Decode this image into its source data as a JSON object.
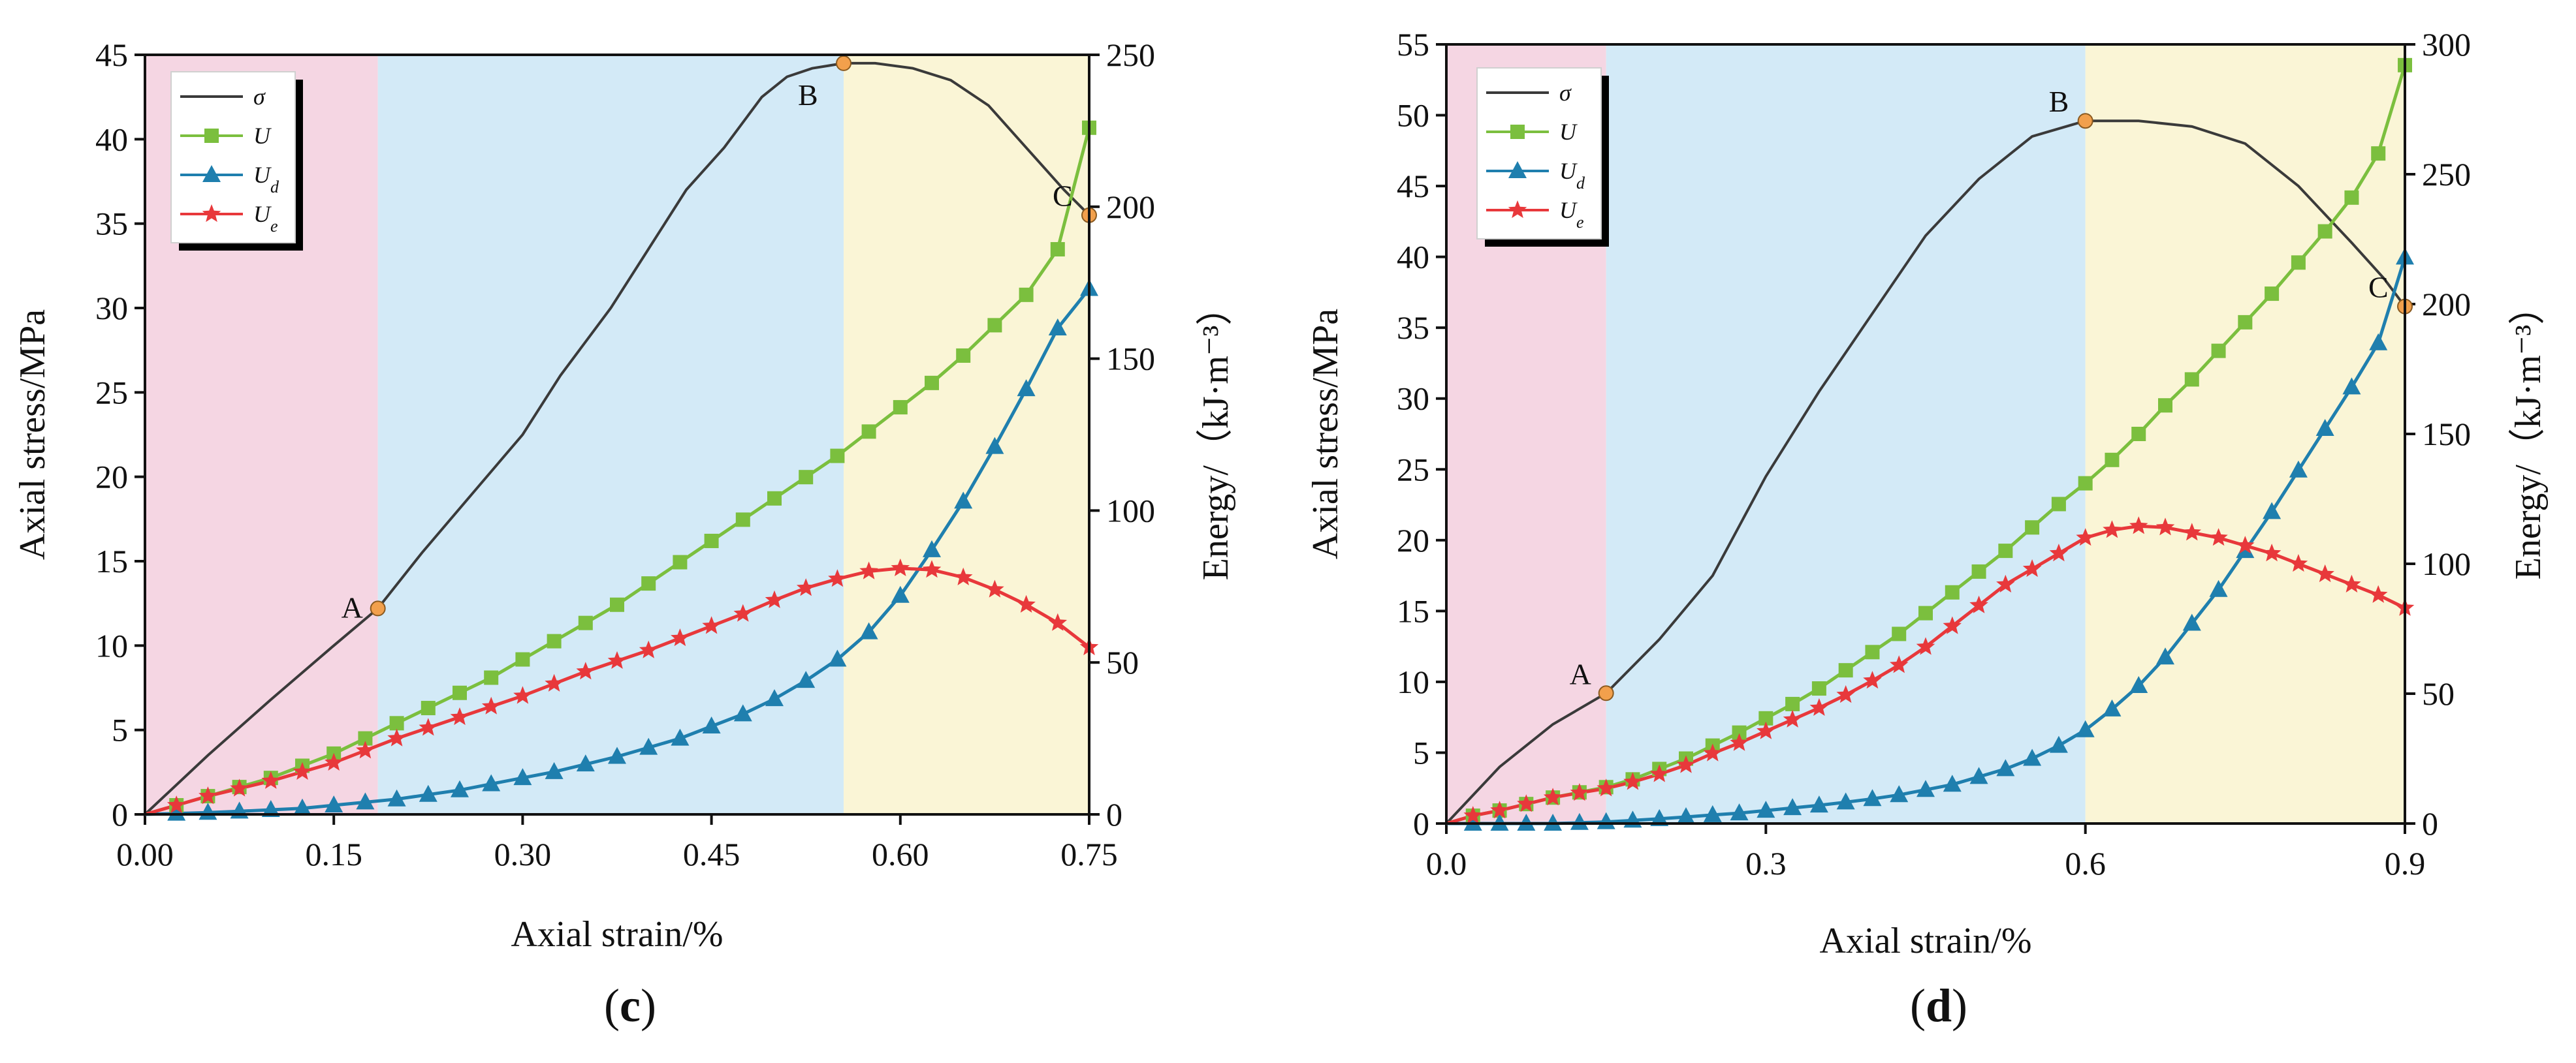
{
  "chart_data": [
    {
      "type": "line",
      "panel_label": "(c)",
      "caption_parts": {
        "open": "(",
        "letter": "c",
        "close": ")"
      },
      "xlabel": "Axial strain/%",
      "ylabel_left": "Axial stress/MPa",
      "ylabel_right": "Energy/（kJ·m⁻³）",
      "xlim": [
        0,
        0.75
      ],
      "ylim_left": [
        0,
        45
      ],
      "ylim_right": [
        0,
        250
      ],
      "xticks": [
        "0.00",
        "0.15",
        "0.30",
        "0.45",
        "0.60",
        "0.75"
      ],
      "xtick_values": [
        0,
        0.15,
        0.3,
        0.45,
        0.6,
        0.75
      ],
      "yticks_left": [
        "0",
        "5",
        "10",
        "15",
        "20",
        "25",
        "30",
        "35",
        "40",
        "45"
      ],
      "ytick_values_left": [
        0,
        5,
        10,
        15,
        20,
        25,
        30,
        35,
        40,
        45
      ],
      "yticks_right": [
        "0",
        "50",
        "100",
        "150",
        "200",
        "250"
      ],
      "ytick_values_right": [
        0,
        50,
        100,
        150,
        200,
        250
      ],
      "regions": [
        {
          "from": 0,
          "to": 0.185,
          "color": "#f5d6e3"
        },
        {
          "from": 0.185,
          "to": 0.555,
          "color": "#d3eaf7"
        },
        {
          "from": 0.555,
          "to": 0.75,
          "color": "#faf5d6"
        }
      ],
      "points": [
        {
          "label": "A",
          "x": 0.185,
          "y": 12.2,
          "label_pos": "left"
        },
        {
          "label": "B",
          "x": 0.555,
          "y": 44.5,
          "label_pos": "below-left"
        },
        {
          "label": "C",
          "x": 0.75,
          "y": 35.5,
          "label_pos": "above-left"
        }
      ],
      "legend": [
        "σ",
        "U",
        "U_d",
        "U_e"
      ],
      "series": [
        {
          "name": "σ",
          "axis": "left",
          "color": "#3a3a3a",
          "marker": "none",
          "x": [
            0,
            0.05,
            0.1,
            0.15,
            0.185,
            0.22,
            0.26,
            0.3,
            0.33,
            0.37,
            0.4,
            0.43,
            0.46,
            0.49,
            0.51,
            0.53,
            0.555,
            0.58,
            0.61,
            0.64,
            0.67,
            0.7,
            0.73,
            0.75
          ],
          "y": [
            0,
            3.5,
            6.8,
            10.0,
            12.2,
            15.5,
            19.0,
            22.5,
            26.0,
            30.0,
            33.5,
            37.0,
            39.5,
            42.5,
            43.7,
            44.2,
            44.5,
            44.5,
            44.2,
            43.5,
            42.0,
            39.5,
            37.0,
            35.5
          ]
        },
        {
          "name": "U",
          "axis": "right",
          "color": "#7bbf3e",
          "marker": "square",
          "x": [
            0,
            0.025,
            0.05,
            0.075,
            0.1,
            0.125,
            0.15,
            0.175,
            0.2,
            0.225,
            0.25,
            0.275,
            0.3,
            0.325,
            0.35,
            0.375,
            0.4,
            0.425,
            0.45,
            0.475,
            0.5,
            0.525,
            0.55,
            0.575,
            0.6,
            0.625,
            0.65,
            0.675,
            0.7,
            0.725,
            0.75
          ],
          "y": [
            0,
            3,
            6,
            9,
            12,
            16,
            20,
            25,
            30,
            35,
            40,
            45,
            51,
            57,
            63,
            69,
            76,
            83,
            90,
            97,
            104,
            111,
            118,
            126,
            134,
            142,
            151,
            161,
            171,
            186,
            226
          ]
        },
        {
          "name": "U_d",
          "axis": "right",
          "color": "#1f7fae",
          "marker": "triangle",
          "x": [
            0,
            0.025,
            0.05,
            0.075,
            0.1,
            0.125,
            0.15,
            0.175,
            0.2,
            0.225,
            0.25,
            0.275,
            0.3,
            0.325,
            0.35,
            0.375,
            0.4,
            0.425,
            0.45,
            0.475,
            0.5,
            0.525,
            0.55,
            0.575,
            0.6,
            0.625,
            0.65,
            0.675,
            0.7,
            0.725,
            0.75
          ],
          "y": [
            0,
            0.3,
            0.6,
            1.0,
            1.5,
            2.0,
            3.0,
            4.0,
            5.0,
            6.5,
            8.0,
            10,
            12,
            14,
            16.5,
            19,
            22,
            25,
            29,
            33,
            38,
            44,
            51,
            60,
            72,
            87,
            103,
            121,
            140,
            160,
            173
          ]
        },
        {
          "name": "U_e",
          "axis": "right",
          "color": "#e8383b",
          "marker": "star",
          "x": [
            0,
            0.025,
            0.05,
            0.075,
            0.1,
            0.125,
            0.15,
            0.175,
            0.2,
            0.225,
            0.25,
            0.275,
            0.3,
            0.325,
            0.35,
            0.375,
            0.4,
            0.425,
            0.45,
            0.475,
            0.5,
            0.525,
            0.55,
            0.575,
            0.6,
            0.625,
            0.65,
            0.675,
            0.7,
            0.725,
            0.75
          ],
          "y": [
            0,
            3,
            6,
            8.5,
            11,
            14,
            17,
            21,
            25,
            28.5,
            32,
            35.5,
            39,
            43,
            47,
            50.5,
            54,
            58,
            62,
            66,
            70.5,
            74.5,
            77.5,
            80,
            81,
            80.5,
            78,
            74,
            69,
            63,
            55
          ]
        }
      ]
    },
    {
      "type": "line",
      "panel_label": "(d)",
      "caption_parts": {
        "open": "(",
        "letter": "d",
        "close": ")"
      },
      "xlabel": "Axial strain/%",
      "ylabel_left": "Axial stress/MPa",
      "ylabel_right": "Energy/（kJ·m⁻³）",
      "xlim": [
        0,
        0.9
      ],
      "ylim_left": [
        0,
        55
      ],
      "ylim_right": [
        0,
        300
      ],
      "xticks": [
        "0.0",
        "0.3",
        "0.6",
        "0.9"
      ],
      "xtick_values": [
        0,
        0.3,
        0.6,
        0.9
      ],
      "yticks_left": [
        "0",
        "5",
        "10",
        "15",
        "20",
        "25",
        "30",
        "35",
        "40",
        "45",
        "50",
        "55"
      ],
      "ytick_values_left": [
        0,
        5,
        10,
        15,
        20,
        25,
        30,
        35,
        40,
        45,
        50,
        55
      ],
      "yticks_right": [
        "0",
        "50",
        "100",
        "150",
        "200",
        "250",
        "300"
      ],
      "ytick_values_right": [
        0,
        50,
        100,
        150,
        200,
        250,
        300
      ],
      "regions": [
        {
          "from": 0,
          "to": 0.15,
          "color": "#f5d6e3"
        },
        {
          "from": 0.15,
          "to": 0.6,
          "color": "#d3eaf7"
        },
        {
          "from": 0.6,
          "to": 0.9,
          "color": "#faf5d6"
        }
      ],
      "points": [
        {
          "label": "A",
          "x": 0.15,
          "y": 9.2,
          "label_pos": "above-left"
        },
        {
          "label": "B",
          "x": 0.6,
          "y": 49.6,
          "label_pos": "above-left"
        },
        {
          "label": "C",
          "x": 0.9,
          "y": 36.5,
          "label_pos": "above-left"
        }
      ],
      "legend": [
        "σ",
        "U",
        "U_d",
        "U_e"
      ],
      "series": [
        {
          "name": "σ",
          "axis": "left",
          "color": "#3a3a3a",
          "marker": "none",
          "x": [
            0,
            0.05,
            0.1,
            0.15,
            0.2,
            0.25,
            0.3,
            0.35,
            0.4,
            0.45,
            0.5,
            0.55,
            0.6,
            0.65,
            0.7,
            0.75,
            0.8,
            0.85,
            0.88,
            0.9
          ],
          "y": [
            0,
            4.0,
            7.0,
            9.2,
            13.0,
            17.5,
            24.5,
            30.5,
            36.0,
            41.5,
            45.5,
            48.5,
            49.6,
            49.6,
            49.2,
            48.0,
            45.0,
            41.0,
            38.5,
            36.5
          ]
        },
        {
          "name": "U",
          "axis": "right",
          "color": "#7bbf3e",
          "marker": "square",
          "x": [
            0,
            0.025,
            0.05,
            0.075,
            0.1,
            0.125,
            0.15,
            0.175,
            0.2,
            0.225,
            0.25,
            0.275,
            0.3,
            0.325,
            0.35,
            0.375,
            0.4,
            0.425,
            0.45,
            0.475,
            0.5,
            0.525,
            0.55,
            0.575,
            0.6,
            0.625,
            0.65,
            0.675,
            0.7,
            0.725,
            0.75,
            0.775,
            0.8,
            0.825,
            0.85,
            0.875,
            0.9
          ],
          "y": [
            0,
            3,
            5,
            7.5,
            10,
            12,
            14,
            17,
            21,
            25,
            30,
            35,
            40.5,
            46,
            52,
            59,
            66,
            73,
            81,
            89,
            97,
            105,
            114,
            123,
            131,
            140,
            150,
            161,
            171,
            182,
            193,
            204,
            216,
            228,
            241,
            258,
            292
          ]
        },
        {
          "name": "U_d",
          "axis": "right",
          "color": "#1f7fae",
          "marker": "triangle",
          "x": [
            0,
            0.025,
            0.05,
            0.075,
            0.1,
            0.125,
            0.15,
            0.175,
            0.2,
            0.225,
            0.25,
            0.275,
            0.3,
            0.325,
            0.35,
            0.375,
            0.4,
            0.425,
            0.45,
            0.475,
            0.5,
            0.525,
            0.55,
            0.575,
            0.6,
            0.625,
            0.65,
            0.675,
            0.7,
            0.725,
            0.75,
            0.775,
            0.8,
            0.825,
            0.85,
            0.875,
            0.9
          ],
          "y": [
            0,
            0,
            0,
            0,
            0,
            0.3,
            0.6,
            1.2,
            1.8,
            2.5,
            3.3,
            4.0,
            5.0,
            6.0,
            7.0,
            8.2,
            9.5,
            11,
            13,
            15,
            18,
            21,
            25,
            30,
            36,
            44,
            53,
            64,
            77,
            90,
            105,
            120,
            136,
            152,
            168,
            185,
            218
          ]
        },
        {
          "name": "U_e",
          "axis": "right",
          "color": "#e8383b",
          "marker": "star",
          "x": [
            0,
            0.025,
            0.05,
            0.075,
            0.1,
            0.125,
            0.15,
            0.175,
            0.2,
            0.225,
            0.25,
            0.275,
            0.3,
            0.325,
            0.35,
            0.375,
            0.4,
            0.425,
            0.45,
            0.475,
            0.5,
            0.525,
            0.55,
            0.575,
            0.6,
            0.625,
            0.65,
            0.675,
            0.7,
            0.725,
            0.75,
            0.775,
            0.8,
            0.825,
            0.85,
            0.875,
            0.9
          ],
          "y": [
            0,
            3,
            5,
            7.5,
            10,
            11.8,
            13.5,
            16,
            19,
            22.5,
            27,
            31,
            35.5,
            40,
            44.5,
            49.5,
            55,
            61,
            68,
            76,
            84,
            92,
            98,
            104,
            110,
            113,
            114.5,
            114,
            112,
            110,
            107,
            104,
            100,
            96,
            92,
            88,
            83
          ]
        }
      ]
    }
  ]
}
